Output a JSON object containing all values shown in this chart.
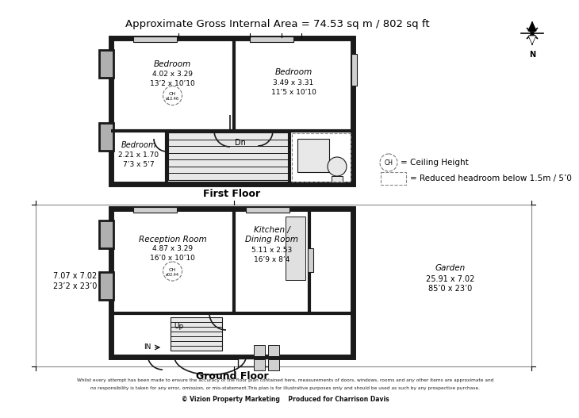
{
  "title": "Approximate Gross Internal Area = 74.53 sq m / 802 sq ft",
  "background_color": "#ffffff",
  "wall_color": "#1a1a1a",
  "first_floor_label": "First Floor",
  "ground_floor_label": "Ground Floor",
  "legend_ch": "= Ceiling Height",
  "legend_reduced": "= Reduced headroom below 1.5m / 5’0",
  "footer_line1": "Whilst every attempt has been made to ensure the accuracy of the floor plan contained here, measurements of doors, windows, rooms and any other items are approximate and",
  "footer_line2": "no responsibility is taken for any error, omission, or mis-statement.This plan is for illustrative purposes only and should be used as such by any prospective purchase.",
  "footer_bold": "© Vizion Property Marketing    Produced for Charrison Davis",
  "rooms": {
    "bedroom1": {
      "name": "Bedroom",
      "dims": "4.02 x 3.29",
      "dims2": "13’2 x 10’10",
      "ch": "CH\nø12.46"
    },
    "bedroom2": {
      "name": "Bedroom",
      "dims": "3.49 x 3.31",
      "dims2": "11’5 x 10’10"
    },
    "bedroom3": {
      "name": "Bedroom",
      "dims": "2.21 x 1.70",
      "dims2": "7’3 x 5’7"
    },
    "reception": {
      "name": "Reception Room",
      "dims": "4.87 x 3.29",
      "dims2": "16’0 x 10’10",
      "ch": "CH\nø02.44"
    },
    "kitchen": {
      "name": "Kitchen /\nDining Room",
      "dims": "5.11 x 2.53",
      "dims2": "16’9 x 8’4"
    },
    "garden": {
      "name": "Garden",
      "dims": "25.91 x 7.02",
      "dims2": "85’0 x 23’0"
    },
    "ground_total": {
      "line1": "7.07 x 7.02",
      "line2": "23’2 x 23’0"
    }
  }
}
